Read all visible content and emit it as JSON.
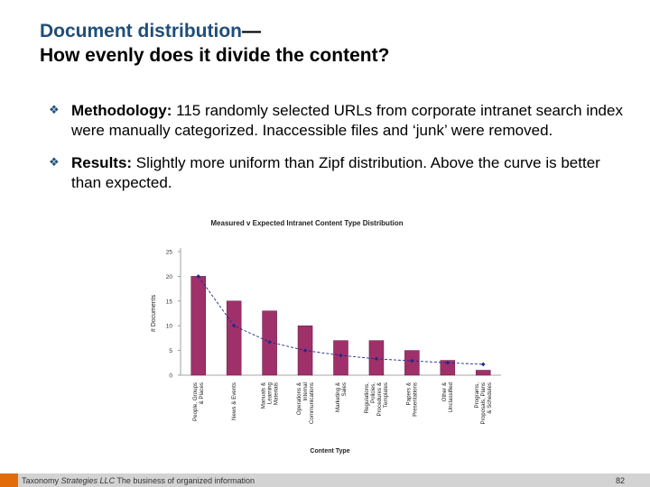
{
  "slide": {
    "title_part1": "Document distribution",
    "title_dash": "—",
    "title_part2": "How evenly does it divide the content?"
  },
  "bullets": [
    {
      "heading": "Methodology:",
      "text": " 115 randomly selected URLs from corporate intranet search index were manually categorized. Inaccessible files and ‘junk’ were removed."
    },
    {
      "heading": "Results:",
      "text": " Slightly more uniform than Zipf distribution. Above the curve is better than expected."
    }
  ],
  "colors": {
    "title": "#1f4e79",
    "bar": "#a0306a",
    "expected_line": "#1f2a8c",
    "footer_bar": "#d3d3d3",
    "footer_accent": "#e36c0a"
  },
  "chart_data": {
    "type": "bar",
    "title": "Measured v Expected Intranet Content Type Distribution",
    "xlabel": "Content Type",
    "ylabel": "# Documents",
    "ylim": [
      0,
      25
    ],
    "yticks": [
      0,
      5,
      10,
      15,
      20,
      25
    ],
    "grid": false,
    "categories": [
      [
        "People, Groups",
        "& Places"
      ],
      [
        "News & Events"
      ],
      [
        "Manuals &",
        "Learning",
        "Materials"
      ],
      [
        "Operations &",
        "Internal",
        "Communications"
      ],
      [
        "Marketing &",
        "Sales"
      ],
      [
        "Regulations,",
        "Policies,",
        "Procedures &",
        "Templates"
      ],
      [
        "Papers &",
        "Presentations"
      ],
      [
        "Other &",
        "Unclassified"
      ],
      [
        "Programs,",
        "Proposals, Plans",
        "& Schedules"
      ]
    ],
    "series": [
      {
        "type": "bar",
        "values": [
          20,
          15,
          13,
          10,
          7,
          7,
          5,
          3,
          1
        ]
      },
      {
        "type": "line",
        "values": [
          20,
          10,
          6.7,
          5,
          4,
          3.3,
          2.9,
          2.5,
          2.2
        ]
      }
    ]
  },
  "footer": {
    "company_plain": "Taxonomy ",
    "company_italic": "Strategies LLC",
    "tagline": " The business of organized information",
    "page_number": "82"
  }
}
